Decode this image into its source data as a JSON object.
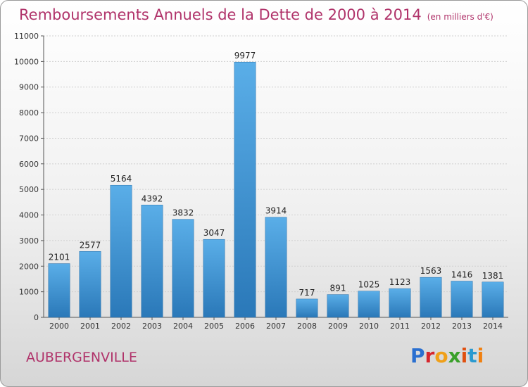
{
  "header": {
    "title": "Remboursements Annuels de la Dette de 2000 à 2014",
    "subtitle": "(en milliers d'€)"
  },
  "footer": {
    "commune": "AUBERGENVILLE",
    "logo": "Proxiti"
  },
  "colors": {
    "bar_top": "#5aaee8",
    "bar_bottom": "#2a78b8",
    "title": "#b0336a"
  },
  "chart_data": {
    "type": "bar",
    "categories": [
      "2000",
      "2001",
      "2002",
      "2003",
      "2004",
      "2005",
      "2006",
      "2007",
      "2008",
      "2009",
      "2010",
      "2011",
      "2012",
      "2013",
      "2014"
    ],
    "values": [
      2101,
      2577,
      5164,
      4392,
      3832,
      3047,
      9977,
      3914,
      717,
      891,
      1025,
      1123,
      1563,
      1416,
      1381
    ],
    "yticks": [
      0,
      1000,
      2000,
      3000,
      4000,
      5000,
      6000,
      7000,
      8000,
      9000,
      10000,
      11000
    ],
    "ylim": [
      0,
      11000
    ],
    "grid": true,
    "legend": "none"
  }
}
